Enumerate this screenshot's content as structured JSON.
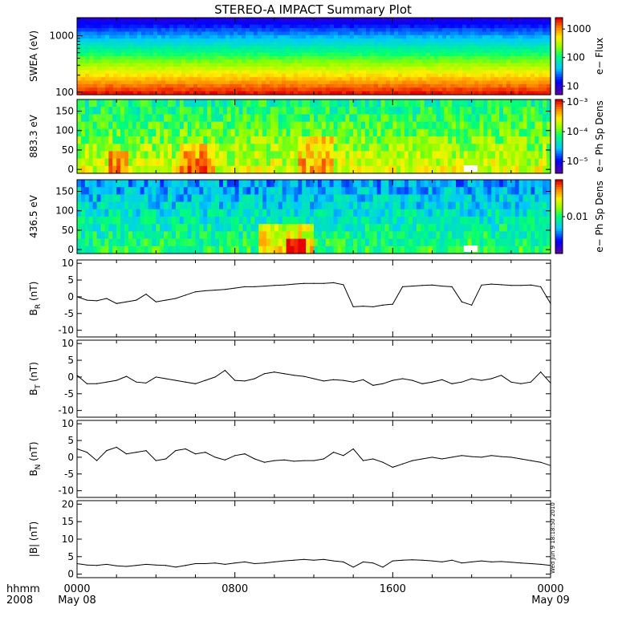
{
  "title": "STEREO-A IMPACT Summary Plot",
  "timestamp": "Wed Jun  9 18:18:50 2010",
  "chart_data": [
    {
      "type": "heatmap",
      "ylabel": "SWEA (eV)",
      "yscale": "log",
      "ylim": [
        90,
        2100
      ],
      "yticks": [
        "100",
        "1000"
      ],
      "colorbar": {
        "label": "e− Flux",
        "scale": "log",
        "range": [
          5,
          2500
        ],
        "ticks": [
          "10",
          "100",
          "1000"
        ]
      },
      "description_bands": "high flux at low energy, decreasing with energy"
    },
    {
      "type": "heatmap",
      "ylabel": "883.3 eV",
      "ylim": [
        -10,
        180
      ],
      "yticks": [
        "0",
        "50",
        "100",
        "150"
      ],
      "colorbar": {
        "label": "e− Ph Sp Dens",
        "scale": "log",
        "range": [
          4e-06,
          0.0012
        ],
        "ticks": [
          "10⁻³",
          "10⁻⁴",
          "10⁻⁵"
        ]
      }
    },
    {
      "type": "heatmap",
      "ylabel": "436.5 eV",
      "ylim": [
        -10,
        180
      ],
      "yticks": [
        "0",
        "50",
        "100",
        "150"
      ],
      "colorbar": {
        "label": "e− Ph Sp Dens",
        "scale": "log",
        "range": [
          0.002,
          0.05
        ],
        "ticks": [
          "0.01"
        ]
      }
    },
    {
      "type": "line",
      "ylabel": "B_R (nT)",
      "ylabel_main": "B",
      "ylabel_sub": "R",
      "ylabel_unit": "(nT)",
      "ylim": [
        -12,
        11
      ],
      "yticks": [
        "-10",
        "-5",
        "0",
        "5",
        "10"
      ],
      "x_hours": [
        0,
        0.5,
        1,
        1.5,
        2,
        2.5,
        3,
        3.5,
        4,
        4.5,
        5,
        5.5,
        6,
        6.5,
        7,
        7.5,
        8,
        8.5,
        9,
        9.5,
        10,
        10.5,
        11,
        11.5,
        12,
        12.5,
        13,
        13.5,
        14,
        14.5,
        15,
        15.5,
        16,
        16.5,
        17,
        17.5,
        18,
        18.5,
        19,
        19.5,
        20,
        20.5,
        21,
        21.5,
        22,
        22.5,
        23,
        23.5,
        24
      ],
      "values": [
        0,
        -1,
        -1.2,
        -0.5,
        -2,
        -1.5,
        -1,
        0.8,
        -1.5,
        -1,
        -0.5,
        0.5,
        1.5,
        1.8,
        2,
        2.2,
        2.6,
        3,
        3,
        3.2,
        3.4,
        3.5,
        3.8,
        4,
        4,
        4,
        4.2,
        3.6,
        -3,
        -2.8,
        -3,
        -2.5,
        -2.2,
        3,
        3.2,
        3.4,
        3.5,
        3.2,
        3,
        -1.5,
        -2.5,
        3.5,
        3.8,
        3.6,
        3.4,
        3.4,
        3.5,
        3,
        -2
      ]
    },
    {
      "type": "line",
      "ylabel": "B_T (nT)",
      "ylabel_main": "B",
      "ylabel_sub": "T",
      "ylabel_unit": "(nT)",
      "ylim": [
        -12,
        11
      ],
      "yticks": [
        "-10",
        "-5",
        "0",
        "5",
        "10"
      ],
      "x_hours": [
        0,
        0.5,
        1,
        1.5,
        2,
        2.5,
        3,
        3.5,
        4,
        4.5,
        5,
        5.5,
        6,
        6.5,
        7,
        7.5,
        8,
        8.5,
        9,
        9.5,
        10,
        10.5,
        11,
        11.5,
        12,
        12.5,
        13,
        13.5,
        14,
        14.5,
        15,
        15.5,
        16,
        16.5,
        17,
        17.5,
        18,
        18.5,
        19,
        19.5,
        20,
        20.5,
        21,
        21.5,
        22,
        22.5,
        23,
        23.5,
        24
      ],
      "values": [
        0.5,
        -2,
        -2,
        -1.5,
        -1,
        0.2,
        -1.5,
        -1.8,
        0,
        -0.5,
        -1,
        -1.5,
        -2,
        -1,
        0,
        2,
        -1,
        -1.2,
        -0.5,
        1,
        1.5,
        1,
        0.5,
        0.2,
        -0.5,
        -1.2,
        -0.8,
        -1,
        -1.5,
        -0.8,
        -2.5,
        -2,
        -1,
        -0.5,
        -1,
        -2,
        -1.5,
        -0.8,
        -2,
        -1.5,
        -0.5,
        -1,
        -0.5,
        0.5,
        -1.5,
        -2,
        -1.5,
        1.5,
        -1.8
      ]
    },
    {
      "type": "line",
      "ylabel": "B_N (nT)",
      "ylabel_main": "B",
      "ylabel_sub": "N",
      "ylabel_unit": "(nT)",
      "ylim": [
        -12,
        11
      ],
      "yticks": [
        "-10",
        "-5",
        "0",
        "5",
        "10"
      ],
      "x_hours": [
        0,
        0.5,
        1,
        1.5,
        2,
        2.5,
        3,
        3.5,
        4,
        4.5,
        5,
        5.5,
        6,
        6.5,
        7,
        7.5,
        8,
        8.5,
        9,
        9.5,
        10,
        10.5,
        11,
        11.5,
        12,
        12.5,
        13,
        13.5,
        14,
        14.5,
        15,
        15.5,
        16,
        16.5,
        17,
        17.5,
        18,
        18.5,
        19,
        19.5,
        20,
        20.5,
        21,
        21.5,
        22,
        22.5,
        23,
        23.5,
        24
      ],
      "values": [
        2.5,
        1.5,
        -1,
        2,
        3,
        1,
        1.5,
        2,
        -1,
        -0.5,
        2,
        2.5,
        1,
        1.5,
        0,
        -0.8,
        0.5,
        1,
        -0.5,
        -1.5,
        -1,
        -0.8,
        -1.2,
        -1,
        -1,
        -0.5,
        1.5,
        0.5,
        2.5,
        -1,
        -0.5,
        -1.5,
        -3,
        -2,
        -1,
        -0.5,
        0,
        -0.5,
        0,
        0.5,
        0.2,
        0,
        0.5,
        0.2,
        0,
        -0.5,
        -1,
        -1.5,
        -2.5
      ]
    },
    {
      "type": "line",
      "ylabel": "|B| (nT)",
      "ylabel_main": "|B|",
      "ylabel_sub": "",
      "ylabel_unit": "(nT)",
      "ylim": [
        -1,
        21
      ],
      "yticks": [
        "0",
        "5",
        "10",
        "15",
        "20"
      ],
      "x_hours": [
        0,
        0.5,
        1,
        1.5,
        2,
        2.5,
        3,
        3.5,
        4,
        4.5,
        5,
        5.5,
        6,
        6.5,
        7,
        7.5,
        8,
        8.5,
        9,
        9.5,
        10,
        10.5,
        11,
        11.5,
        12,
        12.5,
        13,
        13.5,
        14,
        14.5,
        15,
        15.5,
        16,
        16.5,
        17,
        17.5,
        18,
        18.5,
        19,
        19.5,
        20,
        20.5,
        21,
        21.5,
        22,
        22.5,
        23,
        23.5,
        24
      ],
      "values": [
        3,
        2.6,
        2.5,
        2.8,
        2.4,
        2.2,
        2.5,
        2.8,
        2.6,
        2.5,
        2,
        2.5,
        3,
        3,
        3.2,
        2.8,
        3.2,
        3.5,
        3,
        3.2,
        3.5,
        3.8,
        4,
        4.2,
        4,
        4.2,
        3.8,
        3.5,
        2,
        3.5,
        3.2,
        2,
        3.8,
        4,
        4.1,
        4,
        3.8,
        3.5,
        4,
        3.2,
        3.5,
        3.8,
        3.5,
        3.6,
        3.4,
        3.2,
        3,
        2.8,
        2.5
      ]
    }
  ],
  "xaxis": {
    "ticks": [
      {
        "hour": 0,
        "label": "0000",
        "date": "May 08"
      },
      {
        "hour": 8,
        "label": "0800",
        "date": ""
      },
      {
        "hour": 16,
        "label": "1600",
        "date": ""
      },
      {
        "hour": 24,
        "label": "0000",
        "date": "May 09"
      }
    ],
    "corner_label_top": "hhmm",
    "corner_label_bottom": "2008"
  },
  "colors": {
    "line": "#000000",
    "gap": "#ffffff"
  }
}
